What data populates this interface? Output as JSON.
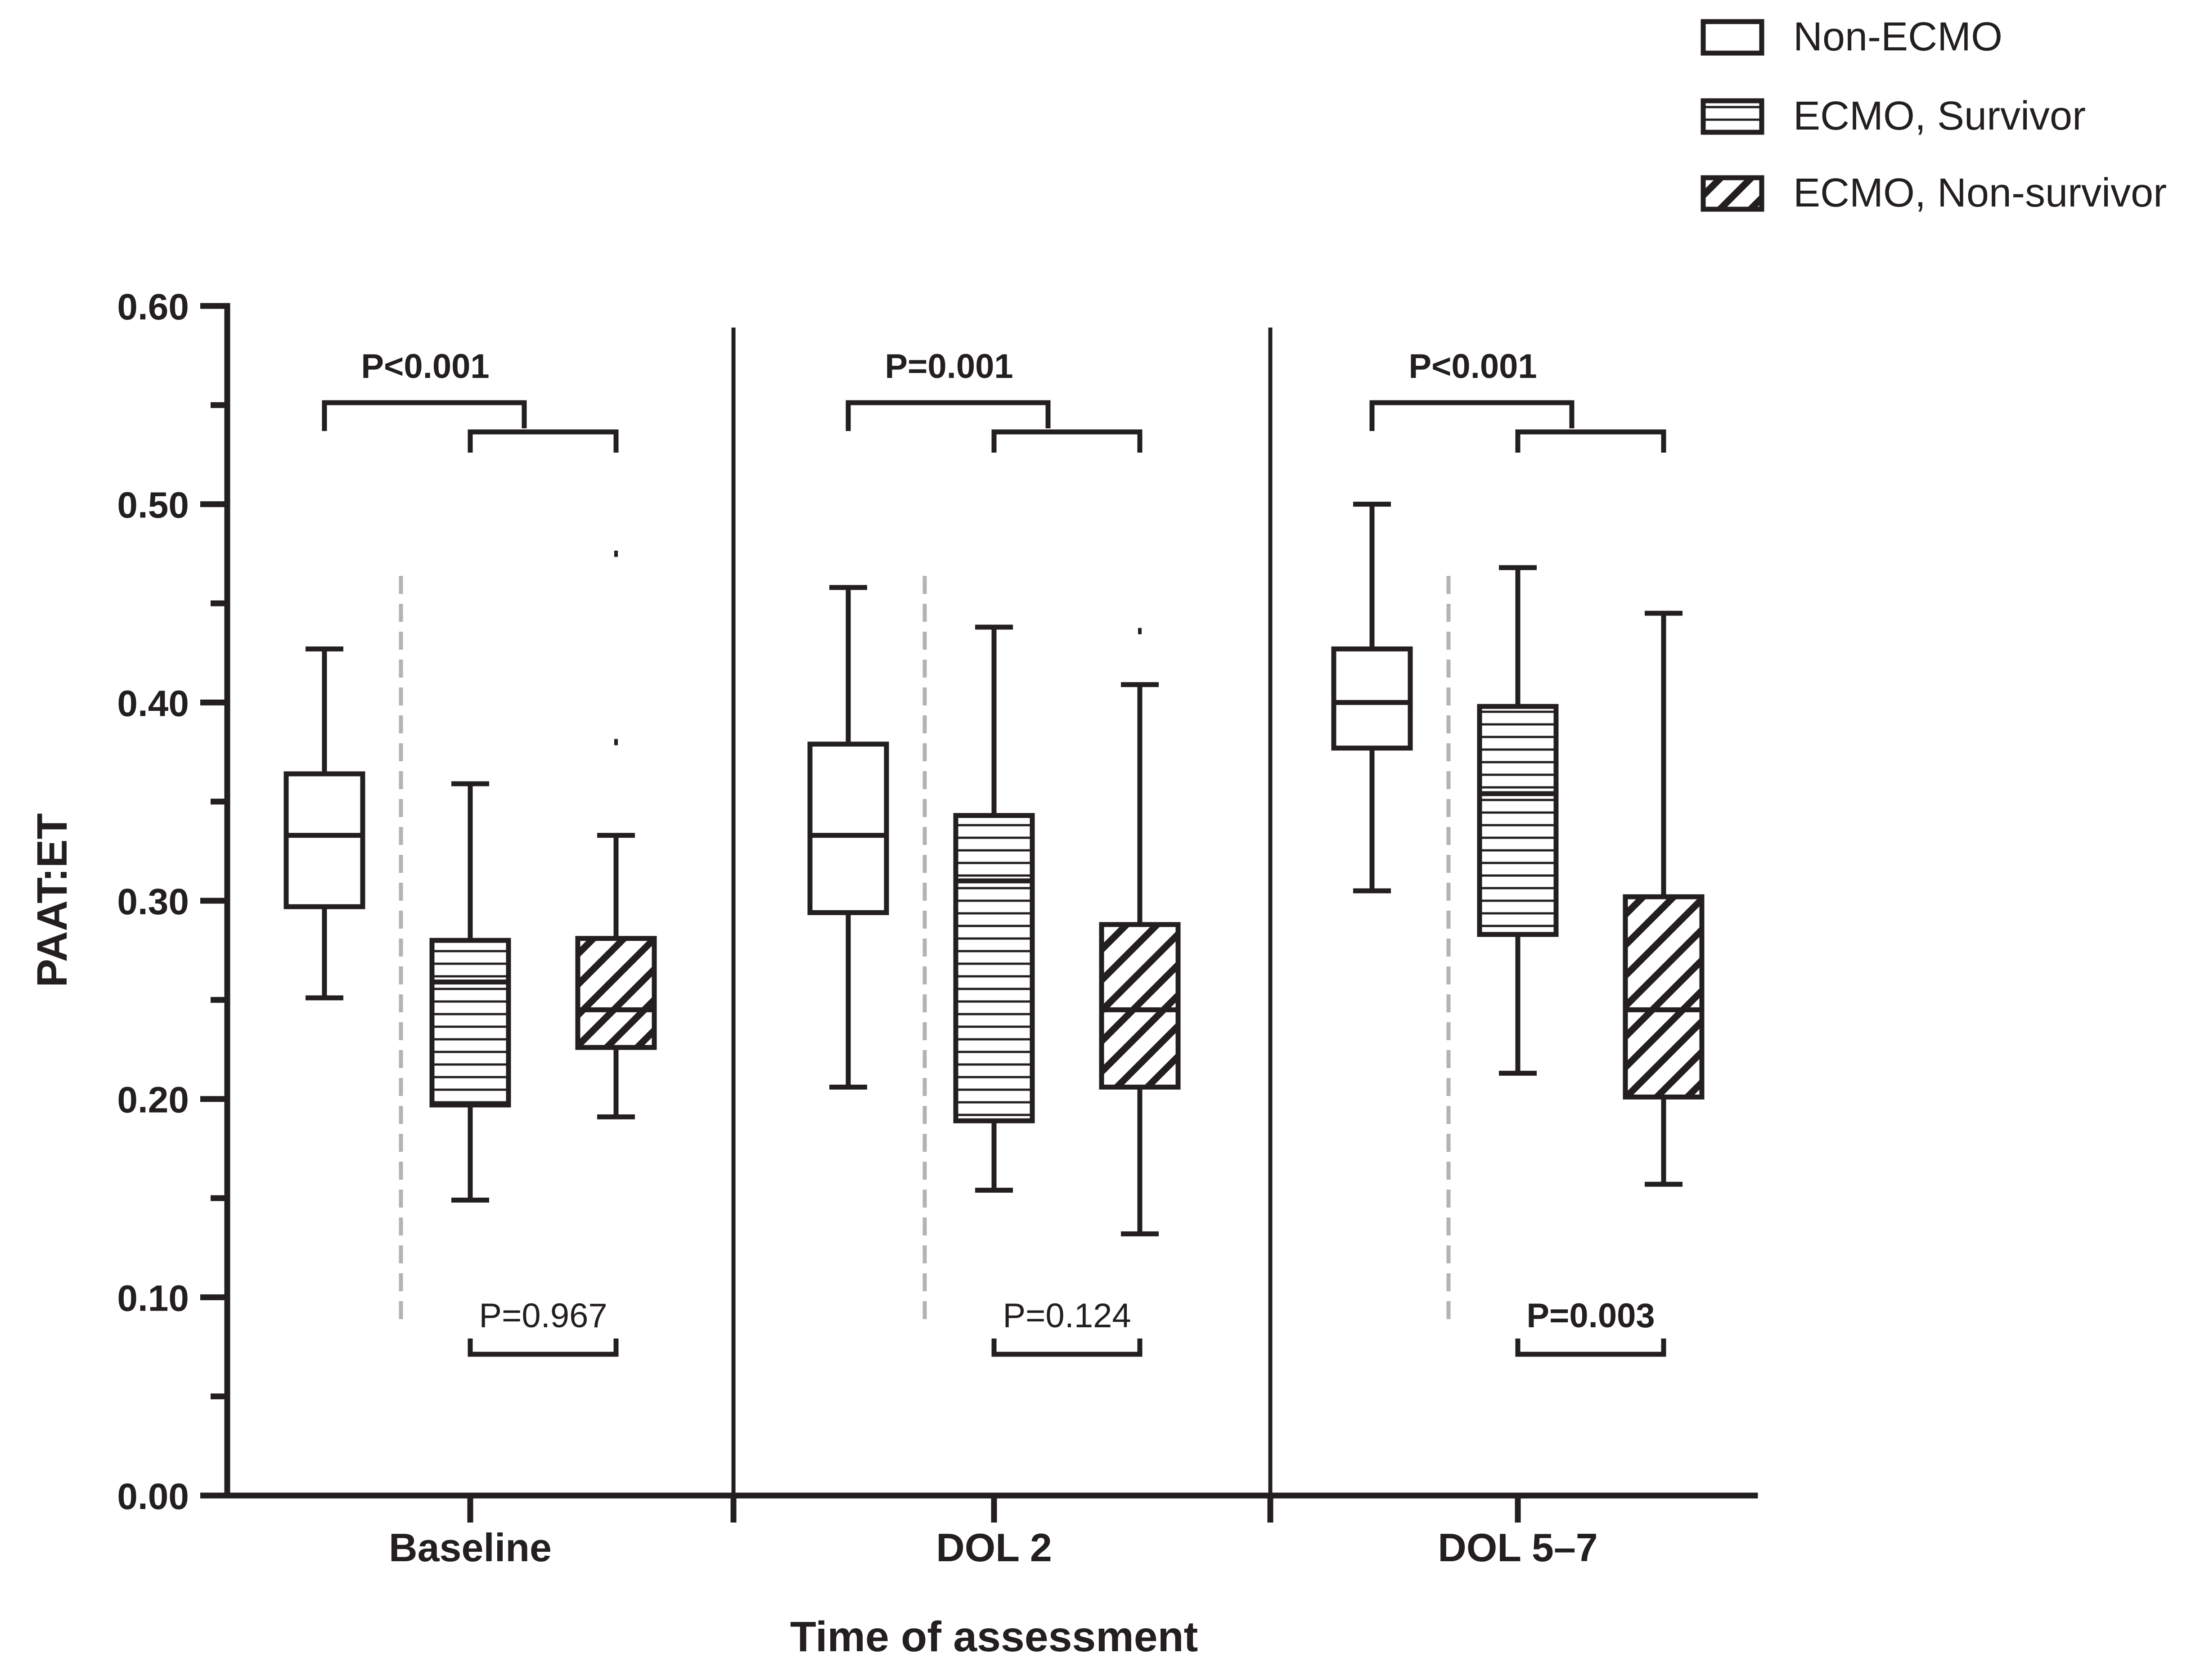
{
  "chart_data": {
    "type": "boxplot",
    "ylabel": "PAAT:ET",
    "xlabel": "Time of assessment",
    "ylim": [
      0,
      0.6
    ],
    "yticks": [
      "0.00",
      "0.10",
      "0.20",
      "0.30",
      "0.40",
      "0.50",
      "0.60"
    ],
    "categories": [
      "Baseline",
      "DOL 2",
      "DOL 5–7"
    ],
    "legend": {
      "placement": "top-right",
      "items": [
        {
          "name": "Non-ECMO",
          "pattern": "none"
        },
        {
          "name": "ECMO, Survivor",
          "pattern": "horizontal"
        },
        {
          "name": "ECMO, Non-survivor",
          "pattern": "diagonal"
        }
      ]
    },
    "series": [
      {
        "name": "Non-ECMO",
        "pattern": "none",
        "boxes": [
          {
            "category": "Baseline",
            "min": 0.251,
            "q1": 0.297,
            "median": 0.333,
            "q3": 0.364,
            "max": 0.427
          },
          {
            "category": "DOL 2",
            "min": 0.206,
            "q1": 0.294,
            "median": 0.333,
            "q3": 0.379,
            "max": 0.458
          },
          {
            "category": "DOL 5–7",
            "min": 0.305,
            "q1": 0.377,
            "median": 0.4,
            "q3": 0.427,
            "max": 0.5
          }
        ]
      },
      {
        "name": "ECMO, Survivor",
        "pattern": "horizontal",
        "boxes": [
          {
            "category": "Baseline",
            "min": 0.149,
            "q1": 0.197,
            "median": 0.259,
            "q3": 0.28,
            "max": 0.359
          },
          {
            "category": "DOL 2",
            "min": 0.154,
            "q1": 0.189,
            "median": 0.31,
            "q3": 0.343,
            "max": 0.438
          },
          {
            "category": "DOL 5–7",
            "min": 0.213,
            "q1": 0.283,
            "median": 0.354,
            "q3": 0.398,
            "max": 0.468
          }
        ]
      },
      {
        "name": "ECMO, Non-survivor",
        "pattern": "diagonal",
        "boxes": [
          {
            "category": "Baseline",
            "min": 0.191,
            "q1": 0.226,
            "median": 0.245,
            "q3": 0.281,
            "max": 0.333,
            "outliers": [
              0.38,
              0.475
            ]
          },
          {
            "category": "DOL 2",
            "min": 0.132,
            "q1": 0.206,
            "median": 0.245,
            "q3": 0.288,
            "max": 0.409,
            "outliers": [
              0.436
            ]
          },
          {
            "category": "DOL 5–7",
            "min": 0.157,
            "q1": 0.201,
            "median": 0.245,
            "q3": 0.302,
            "max": 0.445
          }
        ]
      }
    ],
    "annotations": [
      {
        "category": "Baseline",
        "text": "P<0.001",
        "bold": true,
        "comparison": "Non-ECMO vs ECMO"
      },
      {
        "category": "DOL 2",
        "text": "P=0.001",
        "bold": true,
        "comparison": "Non-ECMO vs ECMO"
      },
      {
        "category": "DOL 5–7",
        "text": "P<0.001",
        "bold": true,
        "comparison": "Non-ECMO vs ECMO"
      },
      {
        "category": "Baseline",
        "text": "P=0.967",
        "bold": false,
        "comparison": "ECMO Survivor vs Non-survivor"
      },
      {
        "category": "DOL 2",
        "text": "P=0.124",
        "bold": false,
        "comparison": "ECMO Survivor vs Non-survivor"
      },
      {
        "category": "DOL 5–7",
        "text": "P=0.003",
        "bold": true,
        "comparison": "ECMO Survivor vs Non-survivor"
      }
    ]
  }
}
